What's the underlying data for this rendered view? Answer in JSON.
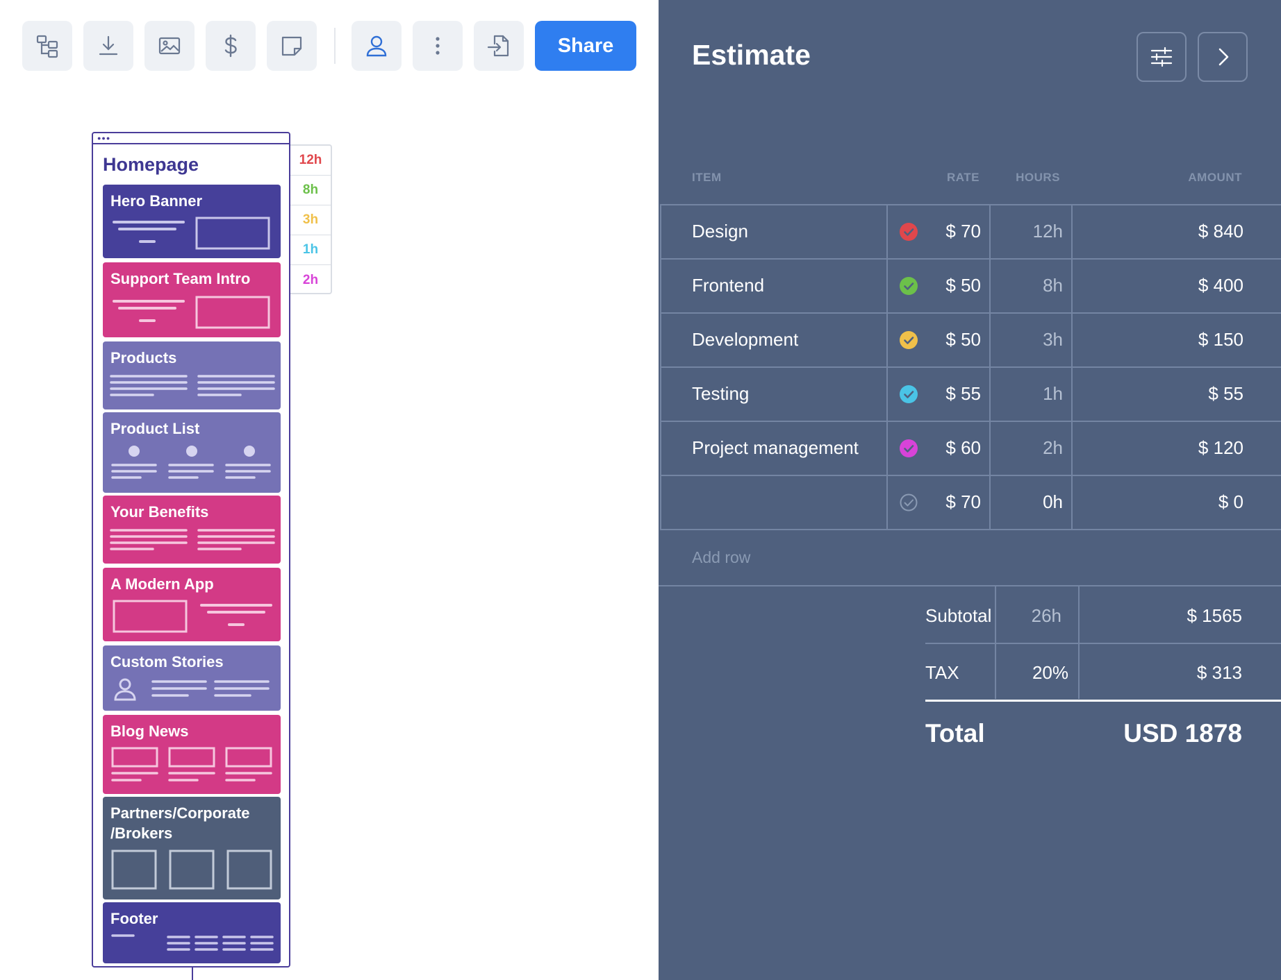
{
  "toolbar": {
    "buttons": [
      {
        "icon": "sitemap-icon"
      },
      {
        "icon": "download-icon"
      },
      {
        "icon": "image-icon"
      },
      {
        "icon": "dollar-icon"
      },
      {
        "icon": "sticky-note-icon"
      },
      {
        "icon": "user-icon"
      },
      {
        "icon": "more-vertical-icon"
      },
      {
        "icon": "export-file-icon"
      }
    ],
    "share_label": "Share"
  },
  "canvas": {
    "page_title": "Homepage",
    "sections": [
      {
        "label": "Hero Banner",
        "color": "#46409a"
      },
      {
        "label": "Support Team Intro",
        "color": "#d33a86"
      },
      {
        "label": "Products",
        "color": "#7572b5"
      },
      {
        "label": "Product List",
        "color": "#7572b5"
      },
      {
        "label": "Your Benefits",
        "color": "#d33a86"
      },
      {
        "label": "A Modern App",
        "color": "#d33a86"
      },
      {
        "label": "Custom Stories",
        "color": "#7572b5"
      },
      {
        "label": "Blog News",
        "color": "#d33a86"
      },
      {
        "label": "Partners/Corporate /Brokers",
        "color": "#4f5e79"
      },
      {
        "label": "Footer",
        "color": "#46409a"
      }
    ],
    "hours": [
      {
        "label": "12h",
        "color": "#e0474c"
      },
      {
        "label": "8h",
        "color": "#6cc04a"
      },
      {
        "label": "3h",
        "color": "#f0c04a"
      },
      {
        "label": "1h",
        "color": "#4ac4e6"
      },
      {
        "label": "2h",
        "color": "#d843d8"
      }
    ]
  },
  "estimate": {
    "title": "Estimate",
    "columns": {
      "item": "ITEM",
      "rate": "RATE",
      "hours": "HOURS",
      "amount": "AMOUNT"
    },
    "rows": [
      {
        "item": "Design",
        "check_color": "#e0474c",
        "rate": "$ 70",
        "hours": "12h",
        "amount": "$ 840"
      },
      {
        "item": "Frontend",
        "check_color": "#6cc04a",
        "rate": "$ 50",
        "hours": "8h",
        "amount": "$ 400"
      },
      {
        "item": "Development",
        "check_color": "#f0c04a",
        "rate": "$ 50",
        "hours": "3h",
        "amount": "$ 150"
      },
      {
        "item": "Testing",
        "check_color": "#4ac4e6",
        "rate": "$ 55",
        "hours": "1h",
        "amount": "$ 55"
      },
      {
        "item": "Project management",
        "check_color": "#d843d8",
        "rate": "$ 60",
        "hours": "2h",
        "amount": "$ 120"
      },
      {
        "item": "",
        "check_color": "",
        "rate": "$ 70",
        "hours": "0h",
        "amount": "$ 0"
      }
    ],
    "add_row": "Add row",
    "subtotal": {
      "label": "Subtotal",
      "hours": "26h",
      "amount": "$ 1565"
    },
    "tax": {
      "label": "TAX",
      "rate": "20%",
      "amount": "$ 313"
    },
    "total": {
      "label": "Total",
      "amount": "USD 1878"
    }
  }
}
